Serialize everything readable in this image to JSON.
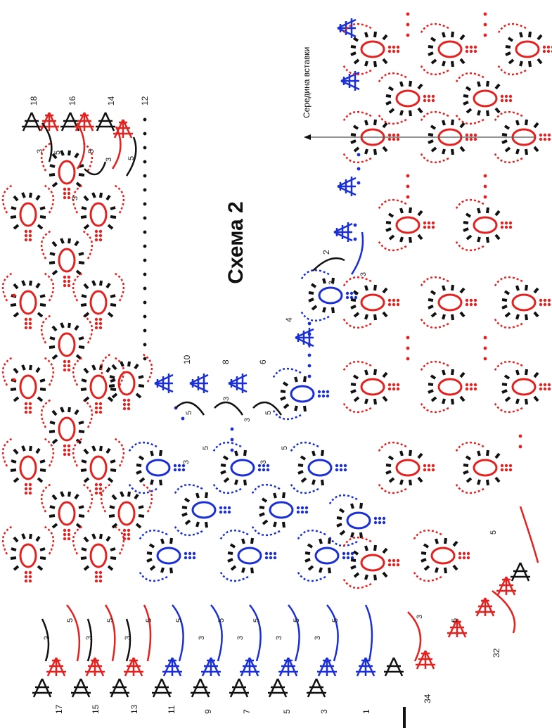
{
  "title": "Схема 2",
  "caption": "Середина вставки",
  "colors": {
    "red": "#e32220",
    "black": "#111111",
    "blue": "#1a2fd6",
    "gray": "#555555"
  },
  "row_labels": [
    "18",
    "16",
    "14",
    "12",
    "10",
    "8",
    "6",
    "4",
    "2",
    "17",
    "15",
    "13",
    "11",
    "9",
    "7",
    "5",
    "3",
    "1",
    "34",
    "32"
  ],
  "chain_counts": {
    "c3": "3",
    "c5": "5"
  }
}
